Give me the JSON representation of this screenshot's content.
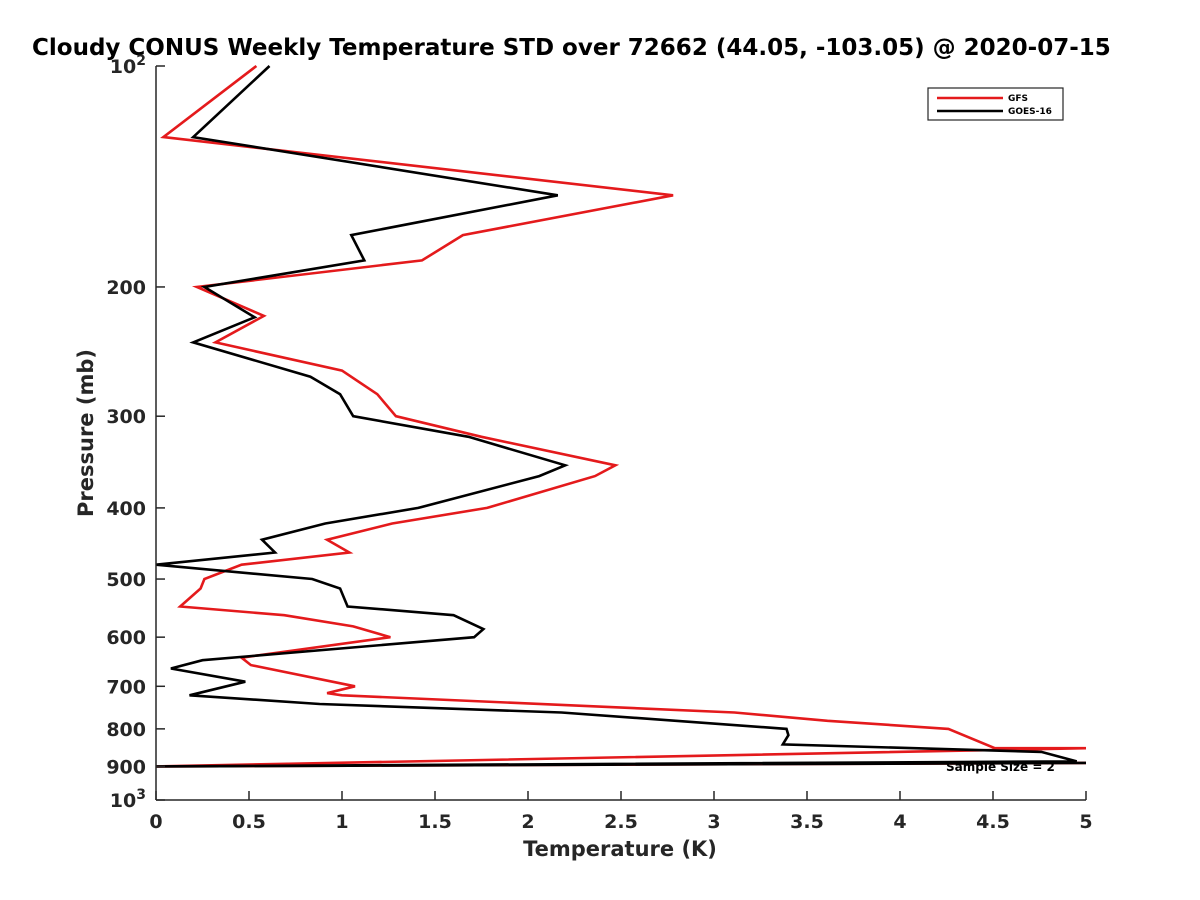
{
  "chart_data": {
    "type": "line",
    "title": "Cloudy CONUS Weekly Temperature STD over 72662 (44.05, -103.05) @ 2020-07-15",
    "xlabel": "Temperature (K)",
    "ylabel": "Pressure (mb)",
    "xlim": [
      0,
      5
    ],
    "ylim": [
      100,
      1000
    ],
    "y_scale": "log",
    "y_reversed": true,
    "grid": false,
    "legend_position": "top-right",
    "x_ticks": [
      {
        "value": 0,
        "label": "0"
      },
      {
        "value": 0.5,
        "label": "0.5"
      },
      {
        "value": 1,
        "label": "1"
      },
      {
        "value": 1.5,
        "label": "1.5"
      },
      {
        "value": 2,
        "label": "2"
      },
      {
        "value": 2.5,
        "label": "2.5"
      },
      {
        "value": 3,
        "label": "3"
      },
      {
        "value": 3.5,
        "label": "3.5"
      },
      {
        "value": 4,
        "label": "4"
      },
      {
        "value": 4.5,
        "label": "4.5"
      },
      {
        "value": 5,
        "label": "5"
      }
    ],
    "y_ticks": [
      {
        "value": 100,
        "base": "10",
        "exp": "2"
      },
      {
        "value": 200,
        "label": "200"
      },
      {
        "value": 300,
        "label": "300"
      },
      {
        "value": 400,
        "label": "400"
      },
      {
        "value": 500,
        "label": "500"
      },
      {
        "value": 600,
        "label": "600"
      },
      {
        "value": 700,
        "label": "700"
      },
      {
        "value": 800,
        "label": "800"
      },
      {
        "value": 900,
        "label": "900"
      },
      {
        "value": 1000,
        "base": "10",
        "exp": "3"
      }
    ],
    "annotation": "Sample Size = 2",
    "series": [
      {
        "name": "GFS",
        "color": "#e41a1c",
        "points": [
          [
            0.54,
            100
          ],
          [
            0.04,
            125
          ],
          [
            2.78,
            150
          ],
          [
            1.65,
            170
          ],
          [
            1.43,
            184
          ],
          [
            0.22,
            200
          ],
          [
            0.58,
            219
          ],
          [
            0.32,
            238
          ],
          [
            1.0,
            260
          ],
          [
            1.19,
            280
          ],
          [
            1.29,
            300
          ],
          [
            1.75,
            320
          ],
          [
            2.47,
            350
          ],
          [
            2.36,
            362
          ],
          [
            1.78,
            400
          ],
          [
            1.27,
            420
          ],
          [
            0.92,
            442
          ],
          [
            1.04,
            460
          ],
          [
            0.46,
            478
          ],
          [
            0.26,
            500
          ],
          [
            0.24,
            515
          ],
          [
            0.13,
            545
          ],
          [
            0.69,
            560
          ],
          [
            1.06,
            580
          ],
          [
            1.26,
            600
          ],
          [
            0.46,
            640
          ],
          [
            0.51,
            655
          ],
          [
            1.07,
            700
          ],
          [
            0.92,
            715
          ],
          [
            1.0,
            720
          ],
          [
            3.11,
            760
          ],
          [
            3.61,
            780
          ],
          [
            4.26,
            800
          ],
          [
            4.51,
            850
          ],
          [
            5.0,
            850
          ],
          [
            0.0,
            900
          ],
          [
            5.0,
            890
          ]
        ]
      },
      {
        "name": "GOES-16",
        "color": "#000000",
        "points": [
          [
            0.61,
            100
          ],
          [
            0.2,
            125
          ],
          [
            2.16,
            150
          ],
          [
            1.05,
            170
          ],
          [
            1.12,
            184
          ],
          [
            0.26,
            200
          ],
          [
            0.53,
            220
          ],
          [
            0.2,
            238
          ],
          [
            0.83,
            265
          ],
          [
            0.99,
            280
          ],
          [
            1.06,
            300
          ],
          [
            1.68,
            320
          ],
          [
            2.2,
            350
          ],
          [
            2.06,
            362
          ],
          [
            1.41,
            400
          ],
          [
            0.91,
            420
          ],
          [
            0.57,
            442
          ],
          [
            0.64,
            460
          ],
          [
            0.0,
            478
          ],
          [
            0.84,
            500
          ],
          [
            0.99,
            515
          ],
          [
            1.03,
            545
          ],
          [
            1.6,
            560
          ],
          [
            1.76,
            585
          ],
          [
            1.71,
            600
          ],
          [
            0.25,
            645
          ],
          [
            0.08,
            662
          ],
          [
            0.48,
            690
          ],
          [
            0.18,
            720
          ],
          [
            0.88,
            740
          ],
          [
            2.18,
            760
          ],
          [
            3.39,
            800
          ],
          [
            3.4,
            816
          ],
          [
            3.37,
            840
          ],
          [
            4.76,
            860
          ],
          [
            4.95,
            886
          ],
          [
            0.0,
            900
          ],
          [
            5.0,
            890
          ]
        ]
      }
    ]
  }
}
